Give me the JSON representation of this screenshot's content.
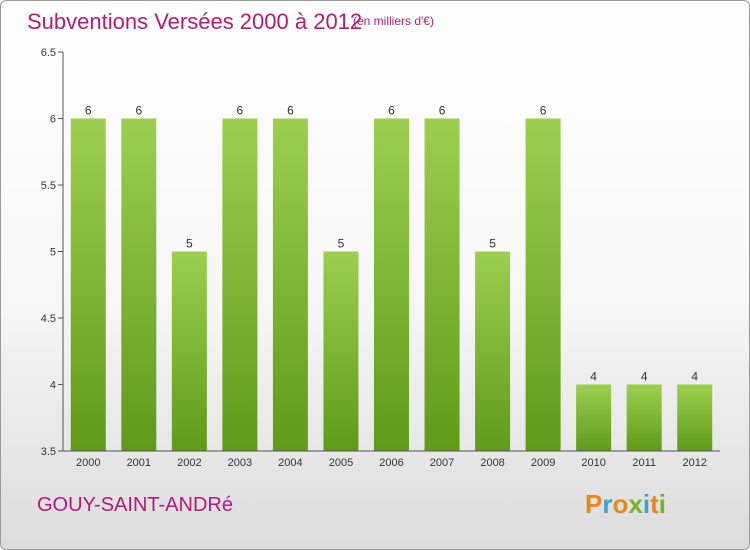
{
  "header": {
    "title": "Subventions Versées 2000 à 2012",
    "subtitle": "(en milliers d'€)"
  },
  "footer": {
    "commune": "GOUY-SAINT-ANDRé",
    "brand": "Proxiti"
  },
  "colors": {
    "title": "#b5197b",
    "bar_top": "#9ccf4f",
    "bar_bottom": "#5f9a19",
    "brand_letters": [
      "#e8871e",
      "#3aa3d8",
      "#e8871e",
      "#72b52a",
      "#3aa3d8",
      "#e8871e",
      "#72b52a"
    ]
  },
  "chart_data": {
    "type": "bar",
    "categories": [
      "2000",
      "2001",
      "2002",
      "2003",
      "2004",
      "2005",
      "2006",
      "2007",
      "2008",
      "2009",
      "2010",
      "2011",
      "2012"
    ],
    "values": [
      6,
      6,
      5,
      6,
      6,
      5,
      6,
      6,
      5,
      6,
      4,
      4,
      4
    ],
    "ylim": [
      3.5,
      6.5
    ],
    "yticks": [
      "3.5",
      "4",
      "4.5",
      "5",
      "5.5",
      "6",
      "6.5"
    ],
    "ytick_values": [
      3.5,
      4,
      4.5,
      5,
      5.5,
      6,
      6.5
    ],
    "grid": false
  }
}
